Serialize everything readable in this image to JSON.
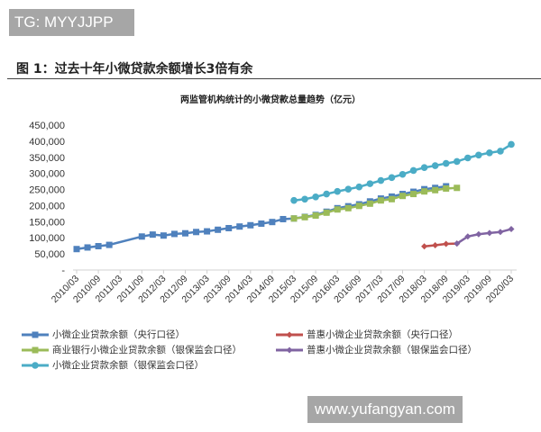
{
  "watermark_top": "TG: MYYJJPP",
  "watermark_bottom": "www.yufangyan.com",
  "figure_title": "图 1：过去十年小微贷款余额增长3倍有余",
  "chart_data": {
    "type": "line",
    "title": "两监管机构统计的小微贷款总量趋势（亿元）",
    "xlabel": "",
    "ylabel": "",
    "ylim": [
      0,
      450000
    ],
    "yticks": [
      "-",
      "50,000",
      "100,000",
      "150,000",
      "200,000",
      "250,000",
      "300,000",
      "350,000",
      "400,000",
      "450,000"
    ],
    "x": [
      "2010/03",
      "2010/06",
      "2010/09",
      "2010/12",
      "2011/03",
      "2011/06",
      "2011/09",
      "2011/12",
      "2012/03",
      "2012/06",
      "2012/09",
      "2012/12",
      "2013/03",
      "2013/06",
      "2013/09",
      "2013/12",
      "2014/03",
      "2014/06",
      "2014/09",
      "2014/12",
      "2015/03",
      "2015/06",
      "2015/09",
      "2015/12",
      "2016/03",
      "2016/06",
      "2016/09",
      "2016/12",
      "2017/03",
      "2017/06",
      "2017/09",
      "2017/12",
      "2018/03",
      "2018/06",
      "2018/09",
      "2018/12",
      "2019/03",
      "2019/06",
      "2019/09",
      "2019/12",
      "2020/03"
    ],
    "xtick_labels": [
      "2010/03",
      "2010/09",
      "2011/03",
      "2011/09",
      "2012/03",
      "2012/09",
      "2013/03",
      "2013/09",
      "2014/03",
      "2014/09",
      "2015/03",
      "2015/09",
      "2016/03",
      "2016/09",
      "2017/03",
      "2017/09",
      "2018/03",
      "2018/09",
      "2019/03",
      "2019/09",
      "2020/03"
    ],
    "grid": false,
    "legend_position": "bottom",
    "series": [
      {
        "name": "小微企业贷款余额（央行口径）",
        "color": "#4f81bd",
        "marker": "square",
        "values": [
          65000,
          70000,
          74000,
          78000,
          null,
          null,
          104000,
          110000,
          107000,
          112000,
          114000,
          118000,
          120000,
          125000,
          130000,
          135000,
          139000,
          144000,
          149000,
          158000,
          160000,
          165000,
          171000,
          181000,
          192000,
          198000,
          204000,
          213000,
          222000,
          228000,
          236000,
          243000,
          251000,
          255000,
          260000,
          null,
          null,
          null,
          null,
          null,
          null
        ]
      },
      {
        "name": "普惠小微企业贷款余额（央行口径）",
        "color": "#c0504d",
        "marker": "diamond",
        "values": [
          null,
          null,
          null,
          null,
          null,
          null,
          null,
          null,
          null,
          null,
          null,
          null,
          null,
          null,
          null,
          null,
          null,
          null,
          null,
          null,
          null,
          null,
          null,
          null,
          null,
          null,
          null,
          null,
          null,
          null,
          null,
          null,
          73500,
          77000,
          81000,
          82000,
          null,
          null,
          null,
          null,
          null
        ]
      },
      {
        "name": "商业银行小微企业贷款余额（银保监会口径）",
        "color": "#9bbb59",
        "marker": "square",
        "values": [
          null,
          null,
          null,
          null,
          null,
          null,
          null,
          null,
          null,
          null,
          null,
          null,
          null,
          null,
          null,
          null,
          null,
          null,
          null,
          null,
          160000,
          164000,
          169000,
          178000,
          188000,
          192000,
          199000,
          206000,
          216000,
          220000,
          230000,
          236000,
          244000,
          248000,
          253000,
          255000,
          null,
          null,
          null,
          null,
          null
        ]
      },
      {
        "name": "普惠小微企业贷款余额（银保监会口径）",
        "color": "#8064a2",
        "marker": "diamond",
        "values": [
          null,
          null,
          null,
          null,
          null,
          null,
          null,
          null,
          null,
          null,
          null,
          null,
          null,
          null,
          null,
          null,
          null,
          null,
          null,
          null,
          null,
          null,
          null,
          null,
          null,
          null,
          null,
          null,
          null,
          null,
          null,
          null,
          null,
          null,
          null,
          82000,
          104000,
          111000,
          115000,
          118000,
          127000
        ]
      },
      {
        "name": "小微企业贷款余额（银保监会口径）",
        "color": "#4bacc6",
        "marker": "circle",
        "values": [
          null,
          null,
          null,
          null,
          null,
          null,
          null,
          null,
          null,
          null,
          null,
          null,
          null,
          null,
          null,
          null,
          null,
          null,
          null,
          null,
          216000,
          220000,
          227000,
          236000,
          244000,
          251000,
          258000,
          268000,
          278000,
          287000,
          297000,
          309000,
          318000,
          324000,
          331000,
          337000,
          348000,
          357000,
          364000,
          369000,
          390000
        ]
      }
    ]
  }
}
